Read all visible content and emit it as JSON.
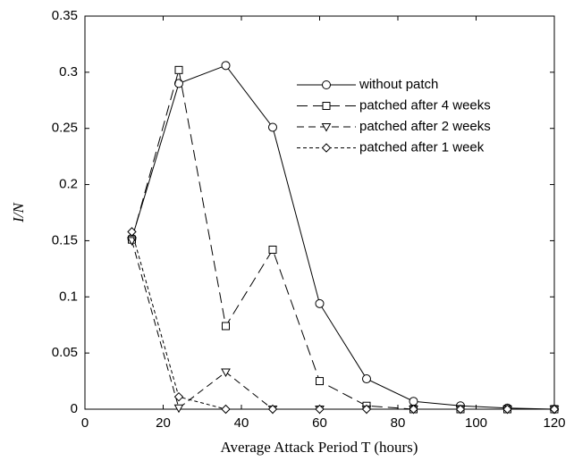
{
  "chart_data": {
    "type": "line",
    "x_label": "Average Attack Period T (hours)",
    "y_label": "I/N",
    "x": [
      12,
      24,
      36,
      48,
      60,
      72,
      84,
      96,
      108,
      120
    ],
    "series": [
      {
        "name": "without patch",
        "color": "#000000",
        "marker": "circle",
        "linestyle": "solid",
        "values": [
          0.152,
          0.29,
          0.306,
          0.251,
          0.094,
          0.027,
          0.007,
          0.003,
          0.001,
          0.0
        ]
      },
      {
        "name": "patched after 4 weeks",
        "color": "#000000",
        "marker": "square",
        "linestyle": "longdash",
        "values": [
          0.151,
          0.302,
          0.074,
          0.142,
          0.025,
          0.003,
          0,
          0,
          0,
          0
        ]
      },
      {
        "name": "patched after 2 weeks",
        "color": "#000000",
        "marker": "triangle-down",
        "linestyle": "dash",
        "values": [
          0.15,
          0.001,
          0.033,
          0,
          0,
          0,
          0,
          0,
          0,
          0
        ]
      },
      {
        "name": "patched after 1 week",
        "color": "#000000",
        "marker": "diamond",
        "linestyle": "shortdash",
        "values": [
          0.158,
          0.011,
          0,
          0,
          0,
          0,
          0,
          0,
          0,
          0
        ]
      }
    ],
    "xlim": [
      0,
      120
    ],
    "xticks": [
      0,
      20,
      40,
      60,
      80,
      100,
      120
    ],
    "ylim": [
      0,
      0.35
    ],
    "yticks": [
      0,
      0.05,
      0.1,
      0.15,
      0.2,
      0.25,
      0.3,
      0.35
    ],
    "grid": false,
    "legend": "upper right"
  }
}
